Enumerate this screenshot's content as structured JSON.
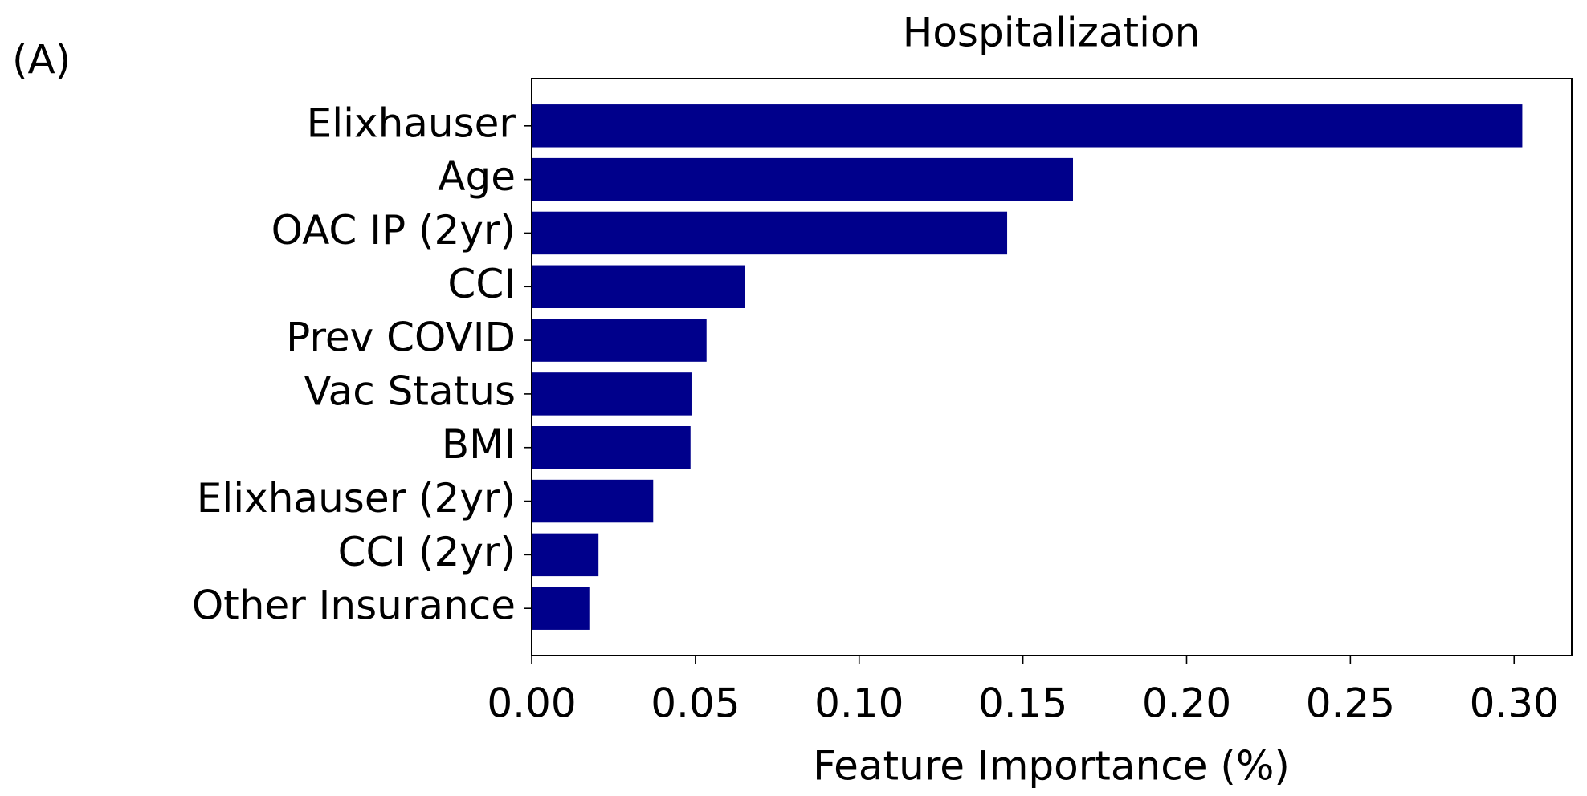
{
  "chart_data": {
    "type": "barh",
    "panel_label": "(A)",
    "title": "Hospitalization",
    "x_label": "Feature Importance (%)",
    "categories": [
      "Elixhauser",
      "Age",
      "OAC IP (2yr)",
      "CCI",
      "Prev COVID",
      "Vac Status",
      "BMI",
      "Elixhauser (2yr)",
      "CCI (2yr)",
      "Other Insurance"
    ],
    "values": [
      0.3025,
      0.1653,
      0.1452,
      0.0652,
      0.0534,
      0.0488,
      0.0485,
      0.0371,
      0.0204,
      0.0176
    ],
    "color": "#00008b",
    "xlim": [
      0,
      0.3176
    ],
    "xticks": [
      {
        "value": 0,
        "label": "0.00"
      },
      {
        "value": 0.05,
        "label": "0.05"
      },
      {
        "value": 0.1,
        "label": "0.10"
      },
      {
        "value": 0.15,
        "label": "0.15"
      },
      {
        "value": 0.2,
        "label": "0.20"
      },
      {
        "value": 0.25,
        "label": "0.25"
      },
      {
        "value": 0.3,
        "label": "0.30"
      }
    ],
    "grid": false
  }
}
